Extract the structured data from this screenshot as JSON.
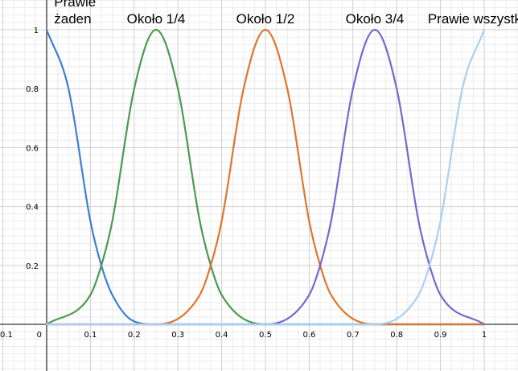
{
  "chart_data": {
    "type": "line",
    "title": "",
    "xlabel": "",
    "ylabel": "",
    "xlim": [
      -0.1,
      1.08
    ],
    "ylim": [
      -0.16,
      1.1
    ],
    "x_ticks": [
      "0.1",
      "0",
      "0.1",
      "0.2",
      "0.3",
      "0.4",
      "0.5",
      "0.6",
      "0.7",
      "0.8",
      "0.9",
      "1"
    ],
    "x_tick_values": [
      -0.1,
      0,
      0.1,
      0.2,
      0.3,
      0.4,
      0.5,
      0.6,
      0.7,
      0.8,
      0.9,
      1
    ],
    "y_ticks": [
      "0.2",
      "0.4",
      "0.6",
      "0.8",
      "1"
    ],
    "y_tick_values": [
      0.2,
      0.4,
      0.6,
      0.8,
      1
    ],
    "grid": true,
    "legend": "none",
    "series": [
      {
        "name": "Prawie żaden",
        "label_lines": [
          "Prawie",
          "żaden"
        ],
        "color": "#3d7fd1",
        "x": [
          0,
          0.05,
          0.1,
          0.125,
          0.15,
          0.2,
          0.25,
          0.3,
          1
        ],
        "y": [
          1,
          0.8,
          0.35,
          0.2,
          0.1,
          0.01,
          0,
          0,
          0
        ]
      },
      {
        "name": "Około 1/4",
        "label_lines": [
          "Około 1/4"
        ],
        "color": "#4a9a4f",
        "x": [
          0,
          0.1,
          0.125,
          0.15,
          0.2,
          0.25,
          0.3,
          0.35,
          0.375,
          0.4,
          0.5,
          1
        ],
        "y": [
          0,
          0.1,
          0.2,
          0.35,
          0.8,
          1,
          0.8,
          0.35,
          0.2,
          0.1,
          0,
          0
        ]
      },
      {
        "name": "Około 1/2",
        "label_lines": [
          "Około 1/2"
        ],
        "color": "#e0752d",
        "x": [
          0,
          0.25,
          0.35,
          0.375,
          0.4,
          0.45,
          0.5,
          0.55,
          0.6,
          0.625,
          0.65,
          0.75,
          1
        ],
        "y": [
          0,
          0,
          0.1,
          0.2,
          0.35,
          0.8,
          1,
          0.8,
          0.35,
          0.2,
          0.1,
          0,
          0
        ]
      },
      {
        "name": "Około 3/4",
        "label_lines": [
          "Około 3/4"
        ],
        "color": "#7b65cc",
        "x": [
          0,
          0.5,
          0.6,
          0.625,
          0.65,
          0.7,
          0.75,
          0.8,
          0.85,
          0.875,
          0.9,
          1
        ],
        "y": [
          0,
          0,
          0.1,
          0.2,
          0.35,
          0.8,
          1,
          0.8,
          0.35,
          0.2,
          0.1,
          0
        ]
      },
      {
        "name": "Prawie wszystkie",
        "label_lines": [
          "Prawie wszystkie"
        ],
        "color": "#a9cff5",
        "x": [
          0,
          0.75,
          0.85,
          0.875,
          0.9,
          0.95,
          1
        ],
        "y": [
          0,
          0,
          0.1,
          0.2,
          0.35,
          0.8,
          1
        ]
      }
    ]
  }
}
